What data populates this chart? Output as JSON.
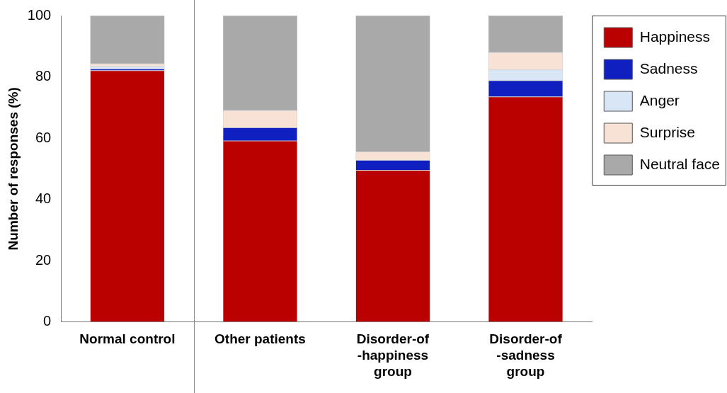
{
  "chart_data": {
    "type": "bar",
    "stacked": true,
    "ylabel": "Number of responses (%)",
    "categories": [
      "Normal control",
      "Other patients",
      "Disorder-of\n-happiness\ngroup",
      "Disorder-of\n-sadness\ngroup"
    ],
    "series": [
      {
        "name": "Happiness",
        "color": "#bb0000",
        "values": [
          82,
          59.1,
          49.5,
          73.5
        ]
      },
      {
        "name": "Sadness",
        "color": "#1020c0",
        "values": [
          0.6,
          4.3,
          3.3,
          5.3
        ]
      },
      {
        "name": "Anger",
        "color": "#d9e6f5",
        "values": [
          0.8,
          0,
          0,
          3.6
        ]
      },
      {
        "name": "Surprise",
        "color": "#f7e2d5",
        "values": [
          0.9,
          5.6,
          2.7,
          5.5
        ]
      },
      {
        "name": "Neutral face",
        "color": "#a9a9a9",
        "values": [
          15.7,
          31,
          44.5,
          12.1
        ]
      }
    ],
    "ylim": [
      0,
      100
    ],
    "yticks": [
      0,
      20,
      40,
      60,
      80,
      100
    ],
    "grid": false,
    "legend": "right"
  }
}
